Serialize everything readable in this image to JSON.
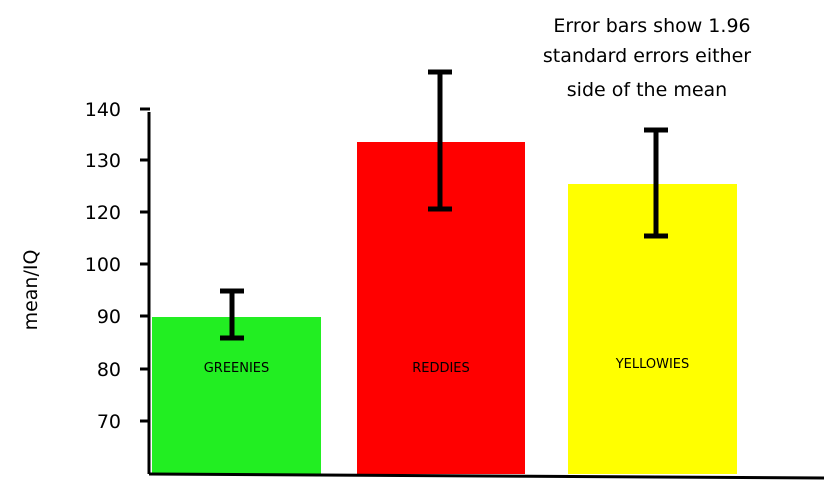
{
  "chart_data": {
    "type": "bar",
    "title": "",
    "xlabel": "",
    "ylabel": "mean/IQ",
    "annotation": [
      "Error bars show 1.96",
      "standard errors either",
      "side of the mean"
    ],
    "categories": [
      "GREENIES",
      "REDDIES",
      "YELLOWIES"
    ],
    "values": [
      90,
      134,
      126
    ],
    "error_low": [
      86,
      121,
      116
    ],
    "error_high": [
      95,
      148,
      137
    ],
    "yticks": [
      "70",
      "80",
      "90",
      "100",
      "120",
      "130",
      "140"
    ],
    "ylim": [
      60,
      142
    ],
    "grid": false,
    "legend": "none",
    "colors": [
      "#22ee22",
      "#ff0000",
      "#ffff00"
    ]
  }
}
